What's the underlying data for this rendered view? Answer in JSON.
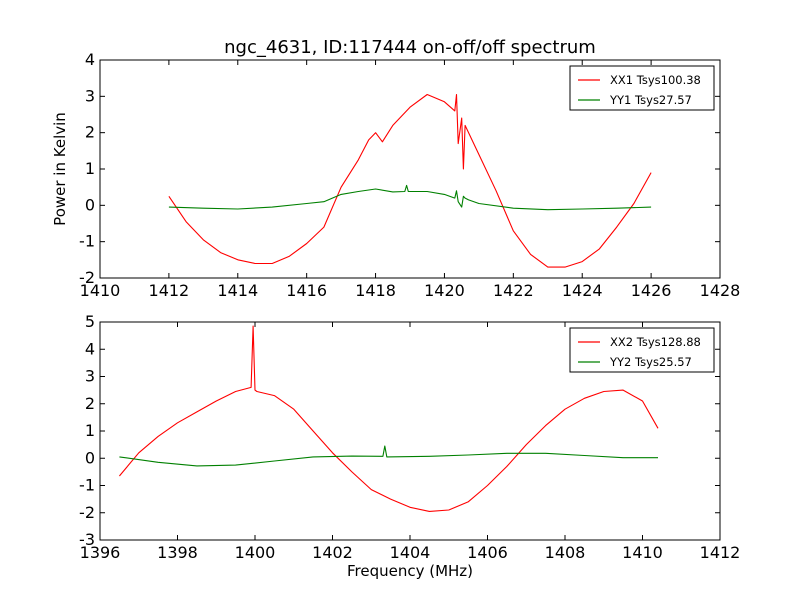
{
  "chart_data": [
    {
      "type": "line",
      "title": "ngc_4631, ID:117444 on-off/off spectrum",
      "xlabel": "",
      "ylabel": "Power in Kelvin",
      "xlim": [
        1410,
        1428
      ],
      "ylim": [
        -2,
        4
      ],
      "xticks": [
        1410,
        1412,
        1414,
        1416,
        1418,
        1420,
        1422,
        1424,
        1426,
        1428
      ],
      "yticks": [
        -2,
        -1,
        0,
        1,
        2,
        3,
        4
      ],
      "grid": false,
      "legend_position": "top-right",
      "series": [
        {
          "name": "XX1 Tsys100.38",
          "color": "#ff0000",
          "x": [
            1412.0,
            1412.5,
            1413.0,
            1413.5,
            1414.0,
            1414.5,
            1415.0,
            1415.5,
            1416.0,
            1416.5,
            1417.0,
            1417.5,
            1417.8,
            1418.0,
            1418.2,
            1418.5,
            1419.0,
            1419.5,
            1420.0,
            1420.3,
            1420.35,
            1420.4,
            1420.5,
            1420.55,
            1420.6,
            1420.7,
            1421.0,
            1421.5,
            1422.0,
            1422.5,
            1423.0,
            1423.5,
            1424.0,
            1424.5,
            1425.0,
            1425.5,
            1426.0
          ],
          "y": [
            0.25,
            -0.45,
            -0.95,
            -1.3,
            -1.5,
            -1.6,
            -1.6,
            -1.4,
            -1.05,
            -0.6,
            0.5,
            1.25,
            1.8,
            2.0,
            1.75,
            2.2,
            2.7,
            3.05,
            2.85,
            2.6,
            3.05,
            1.7,
            2.4,
            1.0,
            2.2,
            2.0,
            1.4,
            0.4,
            -0.7,
            -1.35,
            -1.7,
            -1.7,
            -1.55,
            -1.2,
            -0.6,
            0.05,
            0.9
          ]
        },
        {
          "name": "YY1 Tsys27.57",
          "color": "#008000",
          "x": [
            1412.0,
            1413.0,
            1414.0,
            1415.0,
            1416.0,
            1416.5,
            1417.0,
            1417.5,
            1418.0,
            1418.5,
            1418.85,
            1418.9,
            1418.95,
            1419.5,
            1420.0,
            1420.3,
            1420.35,
            1420.4,
            1420.5,
            1420.55,
            1420.6,
            1420.7,
            1421.0,
            1422.0,
            1423.0,
            1424.0,
            1425.0,
            1426.0
          ],
          "y": [
            -0.05,
            -0.08,
            -0.1,
            -0.05,
            0.05,
            0.1,
            0.3,
            0.38,
            0.45,
            0.37,
            0.38,
            0.55,
            0.38,
            0.38,
            0.3,
            0.2,
            0.4,
            0.1,
            -0.05,
            0.25,
            0.2,
            0.15,
            0.05,
            -0.08,
            -0.12,
            -0.1,
            -0.08,
            -0.05
          ]
        }
      ]
    },
    {
      "type": "line",
      "title": "",
      "xlabel": "Frequency (MHz)",
      "ylabel": "",
      "xlim": [
        1396,
        1412
      ],
      "ylim": [
        -3,
        5
      ],
      "xticks": [
        1396,
        1398,
        1400,
        1402,
        1404,
        1406,
        1408,
        1410,
        1412
      ],
      "yticks": [
        -3,
        -2,
        -1,
        0,
        1,
        2,
        3,
        4,
        5
      ],
      "grid": false,
      "legend_position": "top-right",
      "series": [
        {
          "name": "XX2 Tsys128.88",
          "color": "#ff0000",
          "x": [
            1396.5,
            1397.0,
            1397.5,
            1398.0,
            1398.5,
            1399.0,
            1399.5,
            1399.9,
            1399.95,
            1400.0,
            1400.05,
            1400.5,
            1401.0,
            1401.5,
            1402.0,
            1402.5,
            1403.0,
            1403.5,
            1404.0,
            1404.5,
            1405.0,
            1405.5,
            1406.0,
            1406.5,
            1407.0,
            1407.5,
            1408.0,
            1408.5,
            1409.0,
            1409.5,
            1410.0,
            1410.4
          ],
          "y": [
            -0.65,
            0.2,
            0.8,
            1.3,
            1.7,
            2.1,
            2.45,
            2.6,
            4.85,
            2.5,
            2.45,
            2.3,
            1.8,
            1.0,
            0.2,
            -0.5,
            -1.15,
            -1.5,
            -1.8,
            -1.95,
            -1.9,
            -1.6,
            -1.0,
            -0.3,
            0.5,
            1.2,
            1.8,
            2.2,
            2.45,
            2.5,
            2.1,
            1.1
          ]
        },
        {
          "name": "YY2 Tsys25.57",
          "color": "#008000",
          "x": [
            1396.5,
            1397.5,
            1398.5,
            1399.5,
            1400.5,
            1401.5,
            1402.5,
            1403.3,
            1403.35,
            1403.4,
            1404.5,
            1405.5,
            1406.5,
            1407.5,
            1408.5,
            1409.5,
            1410.4
          ],
          "y": [
            0.05,
            -0.15,
            -0.28,
            -0.25,
            -0.1,
            0.05,
            0.08,
            0.07,
            0.45,
            0.05,
            0.07,
            0.12,
            0.18,
            0.18,
            0.1,
            0.02,
            0.02
          ]
        }
      ]
    }
  ]
}
